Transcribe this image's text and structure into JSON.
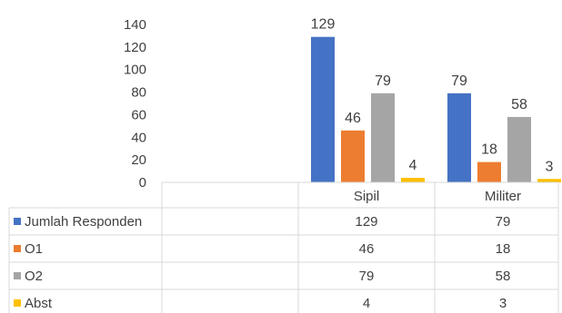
{
  "chart_data": {
    "type": "bar",
    "title": "",
    "xlabel": "",
    "ylabel": "",
    "categories": [
      "Sipil",
      "Militer"
    ],
    "series": [
      {
        "name": "Jumlah Responden",
        "values": [
          129,
          79
        ],
        "color": "#4472C4"
      },
      {
        "name": "O1",
        "values": [
          46,
          18
        ],
        "color": "#ED7D31"
      },
      {
        "name": "O2",
        "values": [
          79,
          58
        ],
        "color": "#A5A5A5"
      },
      {
        "name": "Abst",
        "values": [
          4,
          3
        ],
        "color": "#FFC000"
      }
    ],
    "ylim": [
      0,
      140
    ],
    "yticks": [
      0,
      20,
      40,
      60,
      80,
      100,
      120,
      140
    ],
    "grid": false,
    "legend": "data-table"
  }
}
